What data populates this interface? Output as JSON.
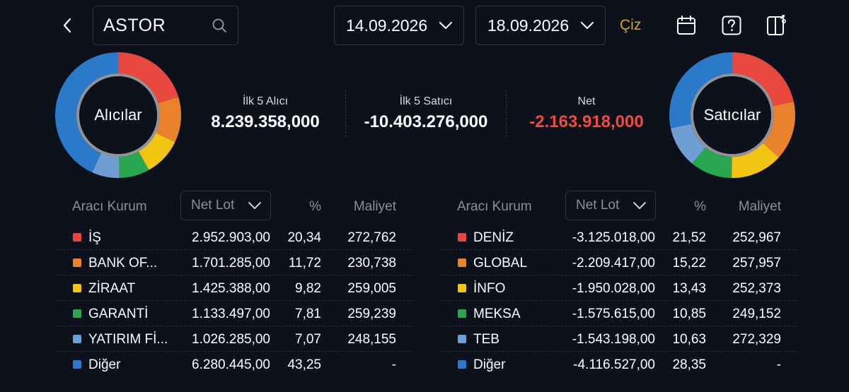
{
  "search": {
    "value": "ASTOR"
  },
  "dates": {
    "start": "14.09.2026",
    "end": "18.09.2026"
  },
  "actions": {
    "draw_label": "Çiz"
  },
  "icons": {
    "back": "chevron-left-icon",
    "search": "search-icon",
    "chevron": "chevron-down-icon",
    "calendar": "calendar-icon",
    "help": "help-icon",
    "panel": "side-panel-icon"
  },
  "colors": {
    "accent": "#d4a52c",
    "negative": "#f24a3d",
    "background": "#0d111c"
  },
  "donuts": {
    "buyers_label": "Alıcılar",
    "sellers_label": "Satıcılar"
  },
  "summary": {
    "top5_buy_label": "İlk 5 Alıcı",
    "top5_buy_value": "8.239.358,000",
    "top5_sell_label": "İlk 5 Satıcı",
    "top5_sell_value": "-10.403.276,000",
    "net_label": "Net",
    "net_value": "-2.163.918,000"
  },
  "table_headers": {
    "broker": "Aracı Kurum",
    "net_lot": "Net Lot",
    "pct": "%",
    "cost": "Maliyet"
  },
  "buyers": [
    {
      "name": "İŞ",
      "lot": "2.952.903,00",
      "pct": "20,34",
      "cost": "272,762",
      "color": "#e8483e",
      "share": 20.34
    },
    {
      "name": "BANK OF...",
      "lot": "1.701.285,00",
      "pct": "11,72",
      "cost": "230,738",
      "color": "#e9822a",
      "share": 11.72
    },
    {
      "name": "ZİRAAT",
      "lot": "1.425.388,00",
      "pct": "9,82",
      "cost": "259,005",
      "color": "#f2c514",
      "share": 9.82
    },
    {
      "name": "GARANTİ",
      "lot": "1.133.497,00",
      "pct": "7,81",
      "cost": "259,239",
      "color": "#28a650",
      "share": 7.81
    },
    {
      "name": "YATIRIM Fİ...",
      "lot": "1.026.285,00",
      "pct": "7,07",
      "cost": "248,155",
      "color": "#6f9ed2",
      "share": 7.07
    },
    {
      "name": "Diğer",
      "lot": "6.280.445,00",
      "pct": "43,25",
      "cost": "-",
      "color": "#2b79c9",
      "share": 43.25
    }
  ],
  "sellers": [
    {
      "name": "DENİZ",
      "lot": "-3.125.018,00",
      "pct": "21,52",
      "cost": "252,967",
      "color": "#e8483e",
      "share": 21.52
    },
    {
      "name": "GLOBAL",
      "lot": "-2.209.417,00",
      "pct": "15,22",
      "cost": "257,957",
      "color": "#e9822a",
      "share": 15.22
    },
    {
      "name": "İNFO",
      "lot": "-1.950.028,00",
      "pct": "13,43",
      "cost": "252,373",
      "color": "#f2c514",
      "share": 13.43
    },
    {
      "name": "MEKSA",
      "lot": "-1.575.615,00",
      "pct": "10,85",
      "cost": "249,152",
      "color": "#28a650",
      "share": 10.85
    },
    {
      "name": "TEB",
      "lot": "-1.543.198,00",
      "pct": "10,63",
      "cost": "272,329",
      "color": "#6f9ed2",
      "share": 10.63
    },
    {
      "name": "Diğer",
      "lot": "-4.116.527,00",
      "pct": "28,35",
      "cost": "-",
      "color": "#2b79c9",
      "share": 28.35
    }
  ]
}
